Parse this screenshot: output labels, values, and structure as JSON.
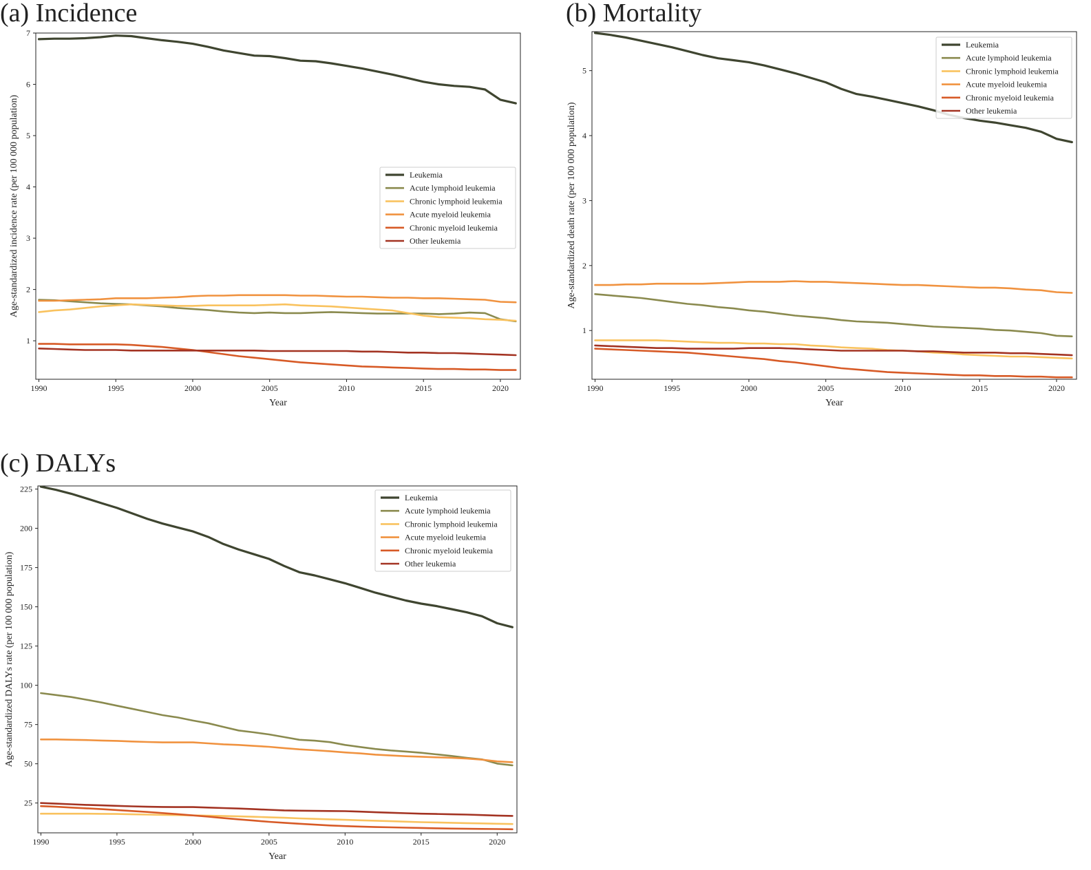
{
  "chart_data": [
    {
      "type": "line",
      "panel_label": "(a) Incidence",
      "xlabel": "Year",
      "ylabel": "Age-standardized incidence rate (per 100 000 population)",
      "xlim": [
        1989.8,
        2021.3
      ],
      "ylim": [
        0.25,
        7.0
      ],
      "xticks": [
        1990,
        1995,
        2000,
        2005,
        2010,
        2015,
        2020
      ],
      "yticks": [
        1,
        2,
        3,
        4,
        5,
        6,
        7
      ],
      "legend_position": "center-right",
      "x": [
        1990,
        1991,
        1992,
        1993,
        1994,
        1995,
        1996,
        1997,
        1998,
        1999,
        2000,
        2001,
        2002,
        2003,
        2004,
        2005,
        2006,
        2007,
        2008,
        2009,
        2010,
        2011,
        2012,
        2013,
        2014,
        2015,
        2016,
        2017,
        2018,
        2019,
        2020,
        2021
      ],
      "series": [
        {
          "name": "Leukemia",
          "color": "#3f4530",
          "values": [
            6.88,
            6.89,
            6.89,
            6.9,
            6.92,
            6.95,
            6.94,
            6.9,
            6.86,
            6.83,
            6.79,
            6.73,
            6.66,
            6.61,
            6.56,
            6.55,
            6.51,
            6.46,
            6.45,
            6.41,
            6.36,
            6.31,
            6.25,
            6.19,
            6.12,
            6.05,
            6.0,
            5.97,
            5.95,
            5.9,
            5.7,
            5.63
          ]
        },
        {
          "name": "Acute lymphoid leukemia",
          "color": "#8a8a4e",
          "values": [
            1.8,
            1.79,
            1.77,
            1.75,
            1.73,
            1.72,
            1.71,
            1.69,
            1.67,
            1.64,
            1.62,
            1.6,
            1.57,
            1.55,
            1.54,
            1.55,
            1.54,
            1.54,
            1.55,
            1.56,
            1.55,
            1.54,
            1.53,
            1.53,
            1.53,
            1.53,
            1.52,
            1.53,
            1.55,
            1.54,
            1.42,
            1.38
          ]
        },
        {
          "name": "Chronic lymphoid leukemia",
          "color": "#f9c25e",
          "values": [
            1.56,
            1.59,
            1.61,
            1.64,
            1.67,
            1.69,
            1.71,
            1.7,
            1.69,
            1.68,
            1.68,
            1.69,
            1.69,
            1.69,
            1.69,
            1.7,
            1.71,
            1.69,
            1.68,
            1.67,
            1.65,
            1.63,
            1.61,
            1.59,
            1.54,
            1.49,
            1.46,
            1.45,
            1.44,
            1.42,
            1.41,
            1.39
          ]
        },
        {
          "name": "Acute myeloid leukemia",
          "color": "#f0923f",
          "values": [
            1.78,
            1.78,
            1.79,
            1.8,
            1.81,
            1.83,
            1.83,
            1.83,
            1.84,
            1.85,
            1.87,
            1.88,
            1.88,
            1.89,
            1.89,
            1.89,
            1.89,
            1.88,
            1.88,
            1.87,
            1.86,
            1.86,
            1.85,
            1.84,
            1.84,
            1.83,
            1.83,
            1.82,
            1.81,
            1.8,
            1.76,
            1.75
          ]
        },
        {
          "name": "Chronic myeloid leukemia",
          "color": "#d75a26",
          "values": [
            0.94,
            0.94,
            0.93,
            0.93,
            0.93,
            0.93,
            0.92,
            0.9,
            0.88,
            0.85,
            0.82,
            0.78,
            0.74,
            0.7,
            0.67,
            0.64,
            0.61,
            0.58,
            0.56,
            0.54,
            0.52,
            0.5,
            0.49,
            0.48,
            0.47,
            0.46,
            0.45,
            0.45,
            0.44,
            0.44,
            0.43,
            0.43
          ]
        },
        {
          "name": "Other leukemia",
          "color": "#a33322",
          "values": [
            0.85,
            0.84,
            0.83,
            0.82,
            0.82,
            0.82,
            0.81,
            0.81,
            0.81,
            0.81,
            0.81,
            0.81,
            0.81,
            0.81,
            0.81,
            0.8,
            0.8,
            0.8,
            0.8,
            0.8,
            0.8,
            0.79,
            0.79,
            0.78,
            0.77,
            0.77,
            0.76,
            0.76,
            0.75,
            0.74,
            0.73,
            0.72
          ]
        }
      ]
    },
    {
      "type": "line",
      "panel_label": "(b) Mortality",
      "xlabel": "Year",
      "ylabel": "Age-standardized death rate (per 100 000 population)",
      "xlim": [
        1989.8,
        2021.3
      ],
      "ylim": [
        0.25,
        5.6
      ],
      "xticks": [
        1990,
        1995,
        2000,
        2005,
        2010,
        2015,
        2020
      ],
      "yticks": [
        1,
        2,
        3,
        4,
        5
      ],
      "legend_position": "top-right",
      "x": [
        1990,
        1991,
        1992,
        1993,
        1994,
        1995,
        1996,
        1997,
        1998,
        1999,
        2000,
        2001,
        2002,
        2003,
        2004,
        2005,
        2006,
        2007,
        2008,
        2009,
        2010,
        2011,
        2012,
        2013,
        2014,
        2015,
        2016,
        2017,
        2018,
        2019,
        2020,
        2021
      ],
      "series": [
        {
          "name": "Leukemia",
          "color": "#3f4530",
          "values": [
            5.58,
            5.55,
            5.51,
            5.46,
            5.41,
            5.36,
            5.3,
            5.24,
            5.19,
            5.16,
            5.13,
            5.08,
            5.02,
            4.96,
            4.89,
            4.82,
            4.72,
            4.64,
            4.6,
            4.55,
            4.5,
            4.45,
            4.39,
            4.32,
            4.27,
            4.23,
            4.2,
            4.16,
            4.12,
            4.06,
            3.95,
            3.9
          ]
        },
        {
          "name": "Acute lymphoid leukemia",
          "color": "#8a8a4e",
          "values": [
            1.56,
            1.54,
            1.52,
            1.5,
            1.47,
            1.44,
            1.41,
            1.39,
            1.36,
            1.34,
            1.31,
            1.29,
            1.26,
            1.23,
            1.21,
            1.19,
            1.16,
            1.14,
            1.13,
            1.12,
            1.1,
            1.08,
            1.06,
            1.05,
            1.04,
            1.03,
            1.01,
            1.0,
            0.98,
            0.96,
            0.92,
            0.91
          ]
        },
        {
          "name": "Chronic lymphoid leukemia",
          "color": "#f9c25e",
          "values": [
            0.85,
            0.85,
            0.85,
            0.85,
            0.85,
            0.84,
            0.83,
            0.82,
            0.81,
            0.81,
            0.8,
            0.8,
            0.79,
            0.79,
            0.77,
            0.76,
            0.74,
            0.73,
            0.72,
            0.7,
            0.69,
            0.68,
            0.66,
            0.65,
            0.63,
            0.62,
            0.61,
            0.6,
            0.6,
            0.59,
            0.58,
            0.57
          ]
        },
        {
          "name": "Acute myeloid leukemia",
          "color": "#f0923f",
          "values": [
            1.7,
            1.7,
            1.71,
            1.71,
            1.72,
            1.72,
            1.72,
            1.72,
            1.73,
            1.74,
            1.75,
            1.75,
            1.75,
            1.76,
            1.75,
            1.75,
            1.74,
            1.73,
            1.72,
            1.71,
            1.7,
            1.7,
            1.69,
            1.68,
            1.67,
            1.66,
            1.66,
            1.65,
            1.63,
            1.62,
            1.59,
            1.58
          ]
        },
        {
          "name": "Chronic myeloid leukemia",
          "color": "#d75a26",
          "values": [
            0.72,
            0.71,
            0.7,
            0.69,
            0.68,
            0.67,
            0.66,
            0.64,
            0.62,
            0.6,
            0.58,
            0.56,
            0.53,
            0.51,
            0.48,
            0.45,
            0.42,
            0.4,
            0.38,
            0.36,
            0.35,
            0.34,
            0.33,
            0.32,
            0.31,
            0.31,
            0.3,
            0.3,
            0.29,
            0.29,
            0.28,
            0.28
          ]
        },
        {
          "name": "Other leukemia",
          "color": "#a33322",
          "values": [
            0.77,
            0.76,
            0.75,
            0.74,
            0.73,
            0.73,
            0.72,
            0.72,
            0.72,
            0.72,
            0.73,
            0.73,
            0.73,
            0.72,
            0.71,
            0.7,
            0.69,
            0.69,
            0.69,
            0.69,
            0.69,
            0.68,
            0.68,
            0.67,
            0.66,
            0.66,
            0.66,
            0.65,
            0.65,
            0.64,
            0.63,
            0.62
          ]
        }
      ]
    },
    {
      "type": "line",
      "panel_label": "(c) DALYs",
      "xlabel": "Year",
      "ylabel": "Age-standardized DALYs rate (per 100 000 population)",
      "xlim": [
        1989.8,
        2021.3
      ],
      "ylim": [
        6,
        227
      ],
      "xticks": [
        1990,
        1995,
        2000,
        2005,
        2010,
        2015,
        2020
      ],
      "yticks": [
        25,
        50,
        75,
        100,
        125,
        150,
        175,
        200,
        225
      ],
      "legend_position": "top-right",
      "x": [
        1990,
        1991,
        1992,
        1993,
        1994,
        1995,
        1996,
        1997,
        1998,
        1999,
        2000,
        2001,
        2002,
        2003,
        2004,
        2005,
        2006,
        2007,
        2008,
        2009,
        2010,
        2011,
        2012,
        2013,
        2014,
        2015,
        2016,
        2017,
        2018,
        2019,
        2020,
        2021
      ],
      "series": [
        {
          "name": "Leukemia",
          "color": "#3f4530",
          "values": [
            226.5,
            224.5,
            222,
            219,
            216,
            213,
            209.5,
            206,
            203,
            200.5,
            198,
            194.5,
            190,
            186.5,
            183.5,
            180.5,
            176,
            172,
            170,
            167.5,
            165,
            162,
            159,
            156.5,
            154,
            152,
            150.5,
            148.5,
            146.5,
            144,
            139.5,
            137
          ]
        },
        {
          "name": "Acute lymphoid leukemia",
          "color": "#8a8a4e",
          "values": [
            95,
            93.8,
            92.5,
            90.8,
            89,
            87,
            85,
            83,
            81,
            79.5,
            77.5,
            75.8,
            73.5,
            71.2,
            70,
            68.7,
            67,
            65.3,
            64.7,
            63.8,
            62,
            60.7,
            59.4,
            58.5,
            57.8,
            57,
            56,
            55,
            53.8,
            52.8,
            50.1,
            49
          ]
        },
        {
          "name": "Chronic lymphoid leukemia",
          "color": "#f9c25e",
          "values": [
            18.2,
            18.2,
            18.2,
            18.2,
            18.1,
            18,
            17.8,
            17.6,
            17.4,
            17.3,
            17.1,
            16.9,
            16.7,
            16.5,
            16.2,
            15.9,
            15.6,
            15.2,
            14.9,
            14.6,
            14.3,
            14,
            13.7,
            13.4,
            13.1,
            12.8,
            12.6,
            12.4,
            12.2,
            12,
            11.8,
            11.6
          ]
        },
        {
          "name": "Acute myeloid leukemia",
          "color": "#f0923f",
          "values": [
            65.5,
            65.5,
            65.3,
            65.1,
            64.8,
            64.6,
            64.2,
            63.9,
            63.6,
            63.6,
            63.6,
            63,
            62.4,
            62,
            61.4,
            60.8,
            60,
            59.2,
            58.6,
            58,
            57.2,
            56.6,
            55.8,
            55.3,
            54.8,
            54.5,
            54.1,
            53.8,
            53.3,
            52.6,
            51.5,
            51
          ]
        },
        {
          "name": "Chronic myeloid leukemia",
          "color": "#d75a26",
          "values": [
            23,
            22.6,
            22.1,
            21.6,
            21.1,
            20.5,
            19.9,
            19.3,
            18.6,
            17.9,
            17.1,
            16.3,
            15.4,
            14.6,
            13.8,
            13,
            12.4,
            11.8,
            11.2,
            10.7,
            10.3,
            10,
            9.7,
            9.5,
            9.3,
            9.1,
            8.9,
            8.7,
            8.6,
            8.5,
            8.4,
            8.3
          ]
        },
        {
          "name": "Other leukemia",
          "color": "#a33322",
          "values": [
            25,
            24.6,
            24.2,
            23.8,
            23.5,
            23.2,
            22.9,
            22.6,
            22.5,
            22.4,
            22.4,
            22.1,
            21.8,
            21.5,
            21.1,
            20.7,
            20.3,
            20.1,
            20,
            19.9,
            19.8,
            19.5,
            19.1,
            18.8,
            18.5,
            18.2,
            18,
            17.8,
            17.6,
            17.3,
            17,
            16.8
          ]
        }
      ]
    }
  ]
}
